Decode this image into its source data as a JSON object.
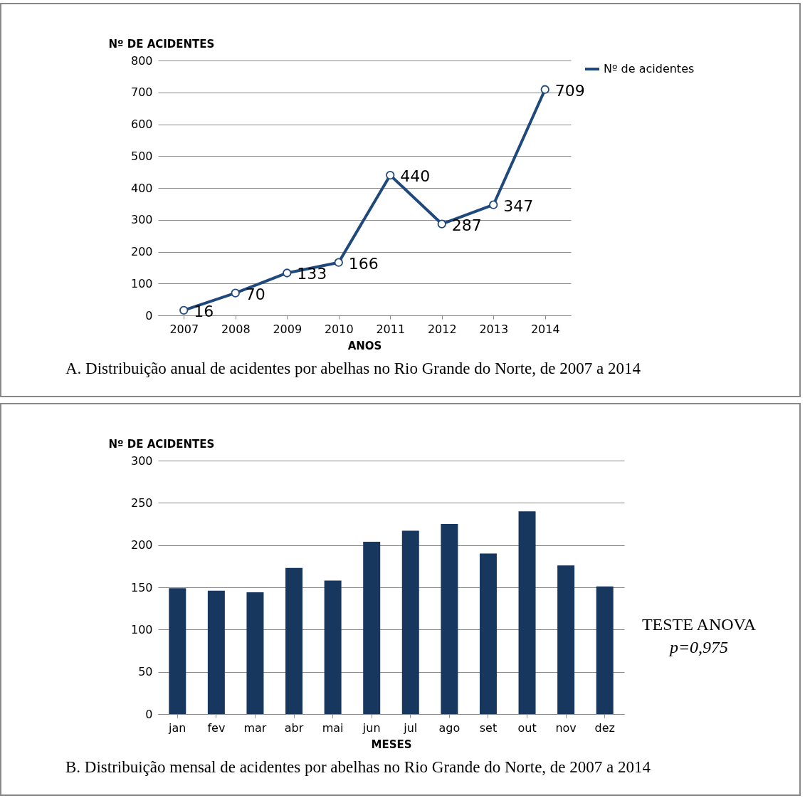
{
  "chart_data": [
    {
      "type": "line",
      "ylabel": "Nº DE ACIDENTES",
      "xlabel": "ANOS",
      "categories": [
        "2007",
        "2008",
        "2009",
        "2010",
        "2011",
        "2012",
        "2013",
        "2014"
      ],
      "series": [
        {
          "name": "Nº de acidentes",
          "color": "#1f497d",
          "values": [
            16,
            70,
            133,
            166,
            440,
            287,
            347,
            709
          ]
        }
      ],
      "ylim": [
        0,
        800
      ],
      "yticks": [
        0,
        100,
        200,
        300,
        400,
        500,
        600,
        700,
        800
      ],
      "grid": "y",
      "legend": "right",
      "marker": "circle",
      "data_labels": true,
      "annotations": [
        "A. Distribuição anual de acidentes por abelhas no Rio Grande do Norte, de 2007 a 2014"
      ]
    },
    {
      "type": "bar",
      "ylabel": "Nº DE ACIDENTES",
      "xlabel": "MESES",
      "categories": [
        "jan",
        "fev",
        "mar",
        "abr",
        "mai",
        "jun",
        "jul",
        "ago",
        "set",
        "out",
        "nov",
        "dez"
      ],
      "values": [
        149,
        146,
        144,
        173,
        158,
        204,
        217,
        225,
        190,
        240,
        176,
        151
      ],
      "color": "#17375e",
      "ylim": [
        0,
        300
      ],
      "yticks": [
        0,
        50,
        100,
        150,
        200,
        250,
        300
      ],
      "grid": "y",
      "annotations": [
        "TESTE ANOVA",
        "p=0,975",
        "B. Distribuição mensal de acidentes por abelhas no Rio Grande do Norte, de 2007 a 2014"
      ]
    }
  ]
}
